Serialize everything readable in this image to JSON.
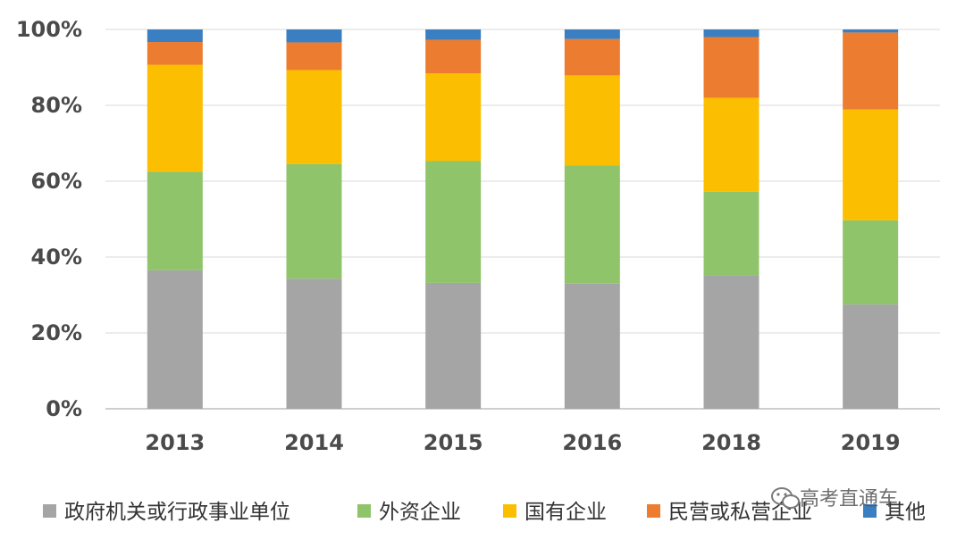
{
  "chart_data": {
    "type": "bar",
    "stacked": true,
    "normalized": true,
    "categories": [
      "2013",
      "2014",
      "2015",
      "2016",
      "2018",
      "2019"
    ],
    "ylim": [
      0,
      100
    ],
    "y_ticks": [
      "0%",
      "20%",
      "40%",
      "60%",
      "80%",
      "100%"
    ],
    "y_tick_values": [
      0,
      20,
      40,
      60,
      80,
      100
    ],
    "grid": true,
    "legend_position": "bottom",
    "series": [
      {
        "name": "政府机关或行政事业单位",
        "color": "#a5a5a5",
        "values": [
          36.5,
          34.3,
          33.2,
          33.0,
          35.2,
          27.5
        ]
      },
      {
        "name": "外资企业",
        "color": "#8fc46b",
        "values": [
          26.0,
          30.2,
          32.1,
          31.2,
          22.0,
          22.2
        ]
      },
      {
        "name": "国有企业",
        "color": "#fcbe00",
        "values": [
          28.2,
          24.8,
          23.1,
          23.7,
          24.8,
          29.2
        ]
      },
      {
        "name": "民营或私营企业",
        "color": "#ec7c30",
        "values": [
          6.0,
          7.3,
          8.9,
          9.6,
          16.0,
          20.3
        ]
      },
      {
        "name": "其他",
        "color": "#3a7fc1",
        "values": [
          3.3,
          3.4,
          2.7,
          2.5,
          2.0,
          0.8
        ]
      }
    ]
  },
  "watermark": {
    "text": "高考直通车",
    "icon": "wechat-icon"
  }
}
